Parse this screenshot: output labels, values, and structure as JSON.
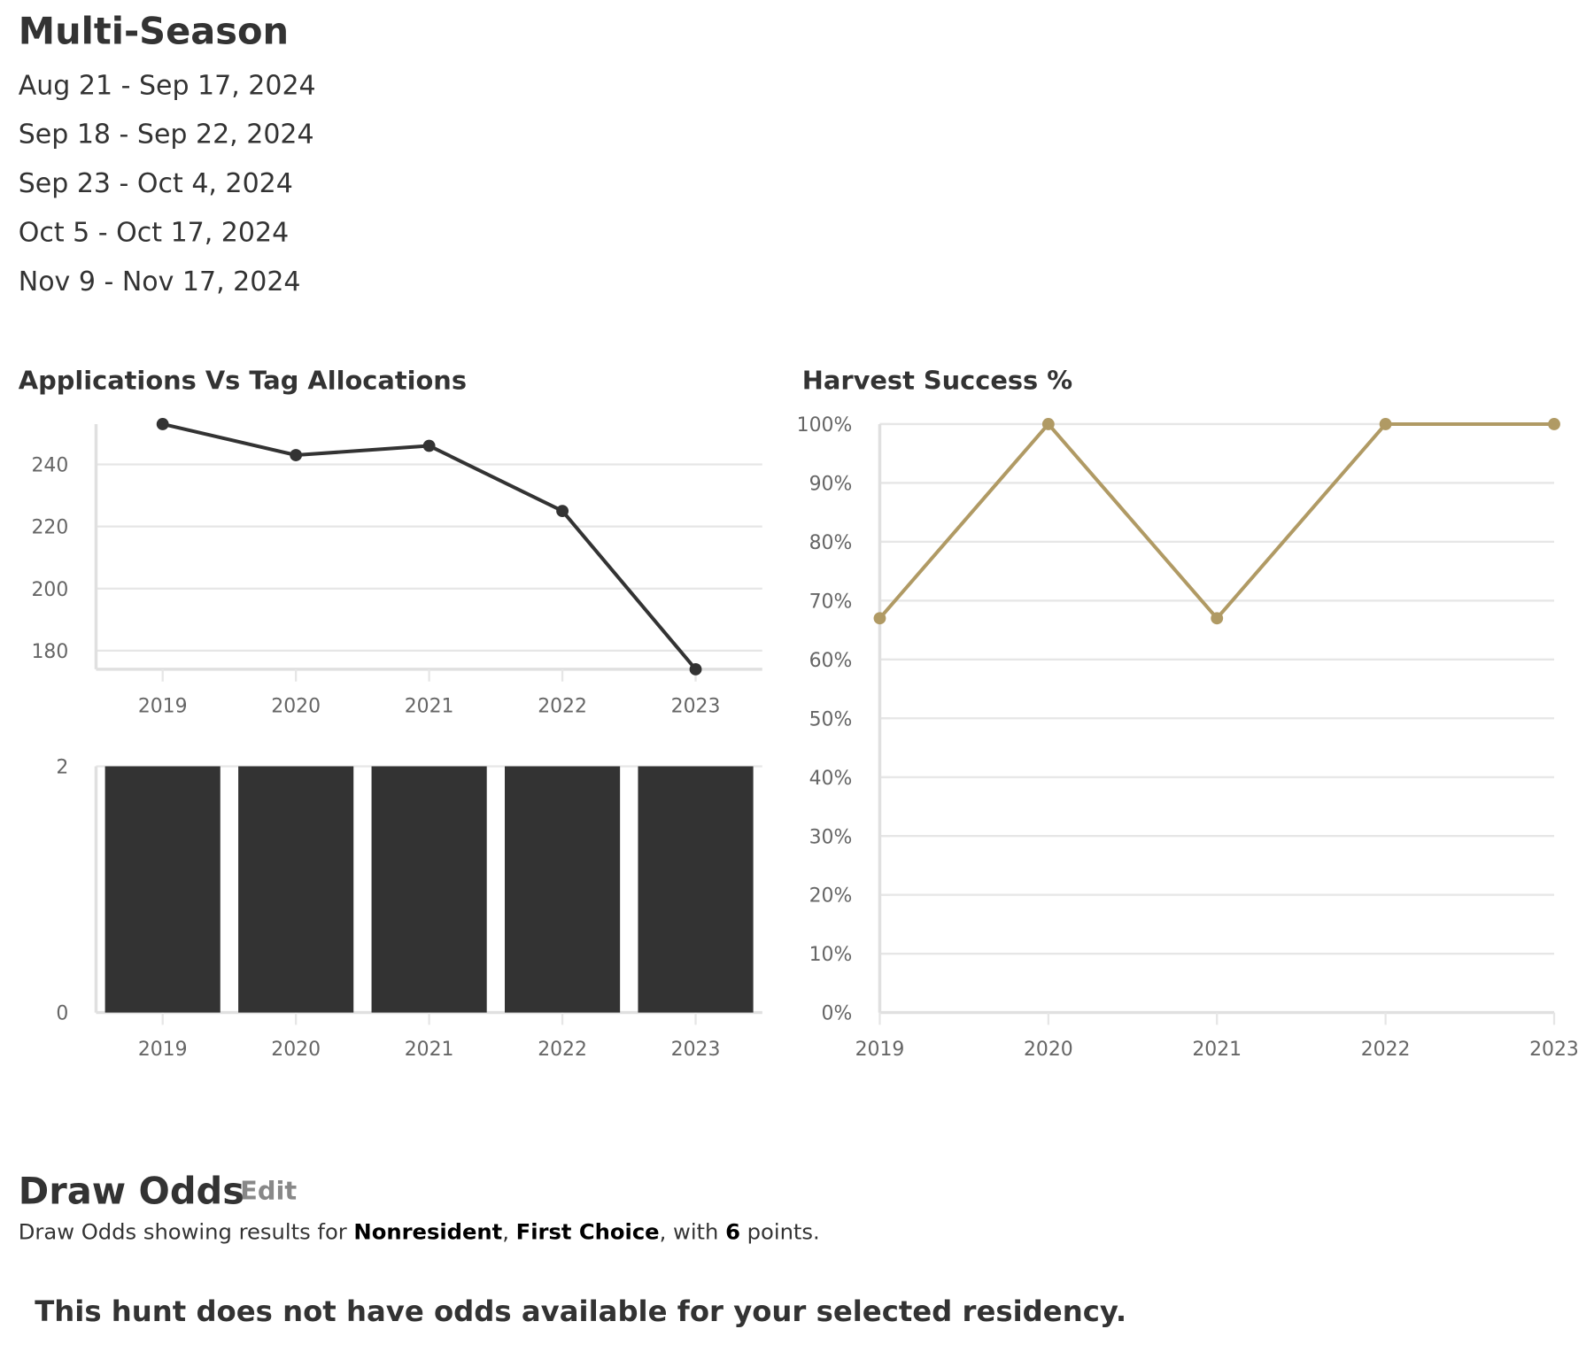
{
  "header": {
    "title": "Multi-Season",
    "dates": [
      "Aug 21 - Sep 17, 2024",
      "Sep 18 - Sep 22, 2024",
      "Sep 23 - Oct 4, 2024",
      "Oct 5 - Oct 17, 2024",
      "Nov 9 - Nov 17, 2024"
    ]
  },
  "chart_data": [
    {
      "type": "line",
      "title": "Applications Vs Tag Allocations",
      "categories": [
        "2019",
        "2020",
        "2021",
        "2022",
        "2023"
      ],
      "values": [
        253,
        243,
        246,
        225,
        174
      ],
      "color": "#333333",
      "ylim": [
        174,
        253
      ],
      "yticks": [
        180,
        200,
        220,
        240
      ],
      "grid": true
    },
    {
      "type": "bar",
      "categories": [
        "2019",
        "2020",
        "2021",
        "2022",
        "2023"
      ],
      "values": [
        2,
        2,
        2,
        2,
        2
      ],
      "color": "#333333",
      "ylim": [
        0,
        2
      ],
      "yticks": [
        0,
        2
      ],
      "grid": true
    },
    {
      "type": "line",
      "title": "Harvest Success %",
      "categories": [
        "2019",
        "2020",
        "2021",
        "2022",
        "2023"
      ],
      "values": [
        67,
        100,
        67,
        100,
        100
      ],
      "color": "#b09a64",
      "ylim": [
        0,
        100
      ],
      "yticks": [
        {
          "value": 0,
          "label": "0%"
        },
        {
          "value": 10,
          "label": "10%"
        },
        {
          "value": 20,
          "label": "20%"
        },
        {
          "value": 30,
          "label": "30%"
        },
        {
          "value": 40,
          "label": "40%"
        },
        {
          "value": 50,
          "label": "50%"
        },
        {
          "value": 60,
          "label": "60%"
        },
        {
          "value": 70,
          "label": "70%"
        },
        {
          "value": 80,
          "label": "80%"
        },
        {
          "value": 90,
          "label": "90%"
        },
        {
          "value": 100,
          "label": "100%"
        }
      ],
      "grid": true,
      "edge_aligned": true
    }
  ],
  "draw_odds": {
    "title": "Draw Odds",
    "edit": "Edit",
    "summary": [
      "Draw Odds showing results for ",
      "Nonresident",
      ", ",
      "First Choice",
      ", with ",
      6,
      " points."
    ],
    "message": "This hunt does not have odds available for your selected residency."
  }
}
